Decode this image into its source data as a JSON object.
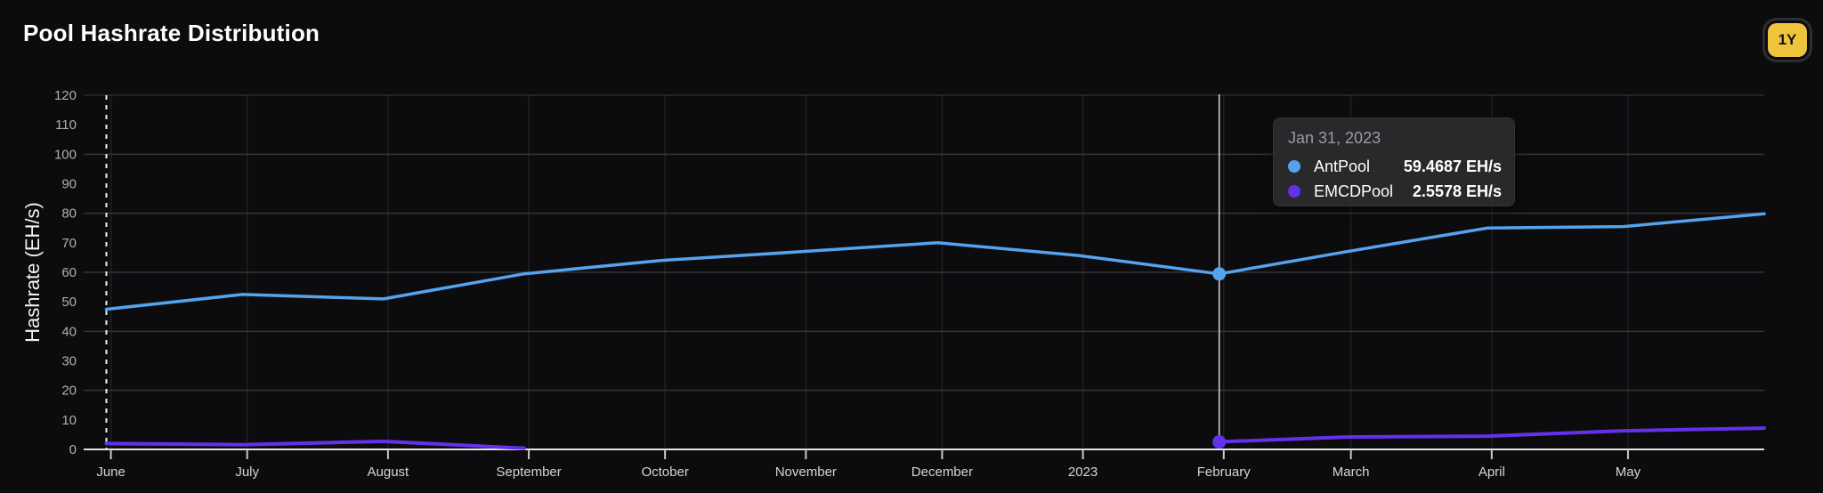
{
  "header": {
    "title": "Pool Hashrate Distribution",
    "range_button_label": "1Y",
    "range_button_color": "#eec43c"
  },
  "tooltip": {
    "date": "Jan 31, 2023",
    "rows": [
      {
        "name": "AntPool",
        "value": "59.4687 EH/s",
        "color": "#55a3ec"
      },
      {
        "name": "EMCDPool",
        "value": "2.5578 EH/s",
        "color": "#6431ea"
      }
    ]
  },
  "chart_data": {
    "type": "line",
    "title": "Pool Hashrate Distribution",
    "xlabel": "",
    "ylabel": "Hashrate (EH/s)",
    "ylim": [
      0,
      120
    ],
    "y_tick_step": 10,
    "y_grid_step": 20,
    "grid": true,
    "legend_position": "tooltip-only",
    "x_domain_days": [
      -5,
      365
    ],
    "start_marker_day": 0,
    "x_ticks": [
      {
        "label": "June",
        "day": 1
      },
      {
        "label": "July",
        "day": 31
      },
      {
        "label": "August",
        "day": 62
      },
      {
        "label": "September",
        "day": 93
      },
      {
        "label": "October",
        "day": 123
      },
      {
        "label": "November",
        "day": 154
      },
      {
        "label": "December",
        "day": 184
      },
      {
        "label": "2023",
        "day": 215
      },
      {
        "label": "February",
        "day": 246
      },
      {
        "label": "March",
        "day": 274
      },
      {
        "label": "April",
        "day": 305
      },
      {
        "label": "May",
        "day": 335
      }
    ],
    "series": [
      {
        "name": "AntPool",
        "color": "#55a3ec",
        "unit": "EH/s",
        "points": [
          {
            "date": "May 31, 2022",
            "day": 0,
            "value": 47.5
          },
          {
            "date": "Jun 30, 2022",
            "day": 30,
            "value": 52.5
          },
          {
            "date": "Jul 31, 2022",
            "day": 61,
            "value": 51.0
          },
          {
            "date": "Aug 31, 2022",
            "day": 92,
            "value": 59.5
          },
          {
            "date": "Sep 30, 2022",
            "day": 122,
            "value": 64.0
          },
          {
            "date": "Oct 31, 2022",
            "day": 153,
            "value": 67.0
          },
          {
            "date": "Nov 30, 2022",
            "day": 183,
            "value": 70.0
          },
          {
            "date": "Dec 31, 2022",
            "day": 214,
            "value": 65.7
          },
          {
            "date": "Jan 31, 2023",
            "day": 245,
            "value": 59.4687
          },
          {
            "date": "Feb 28, 2023",
            "day": 273,
            "value": 67.0
          },
          {
            "date": "Mar 31, 2023",
            "day": 304,
            "value": 75.0
          },
          {
            "date": "Apr 30, 2023",
            "day": 334,
            "value": 75.5
          },
          {
            "date": "May 31, 2023",
            "day": 365,
            "value": 79.8
          }
        ]
      },
      {
        "name": "EMCDPool",
        "color": "#6431ea",
        "unit": "EH/s",
        "points": [
          {
            "date": "May 31, 2022",
            "day": 0,
            "value": 2.0
          },
          {
            "date": "Jun 30, 2022",
            "day": 30,
            "value": 1.6
          },
          {
            "date": "Jul 31, 2022",
            "day": 61,
            "value": 2.7
          },
          {
            "date": "Aug 31, 2022",
            "day": 92,
            "value": 0.4
          },
          {
            "date": "Sep 30, 2022",
            "day": 122,
            "value": null
          },
          {
            "date": "Oct 31, 2022",
            "day": 153,
            "value": null
          },
          {
            "date": "Nov 30, 2022",
            "day": 183,
            "value": null
          },
          {
            "date": "Dec 31, 2022",
            "day": 214,
            "value": null
          },
          {
            "date": "Jan 31, 2023",
            "day": 245,
            "value": 2.5578
          },
          {
            "date": "Feb 28, 2023",
            "day": 273,
            "value": 4.2
          },
          {
            "date": "Mar 31, 2023",
            "day": 304,
            "value": 4.5
          },
          {
            "date": "Apr 30, 2023",
            "day": 334,
            "value": 6.3
          },
          {
            "date": "May 31, 2023",
            "day": 365,
            "value": 7.2
          }
        ]
      }
    ],
    "hover": {
      "date": "Jan 31, 2023",
      "day": 245
    },
    "colors": {
      "background": "#0c0c0e",
      "axis_line": "#e4e4e6",
      "grid_major": "#353538",
      "grid_top": "#2a2a2d",
      "grid_vertical": "#202023",
      "tick_mark": "#c9c9cc",
      "x_tick_label": "#d5d5d7",
      "y_tick_label": "#b0b0b3",
      "hover_line": "#d8d8d8",
      "start_dash_line": "#f2f2f2"
    }
  }
}
